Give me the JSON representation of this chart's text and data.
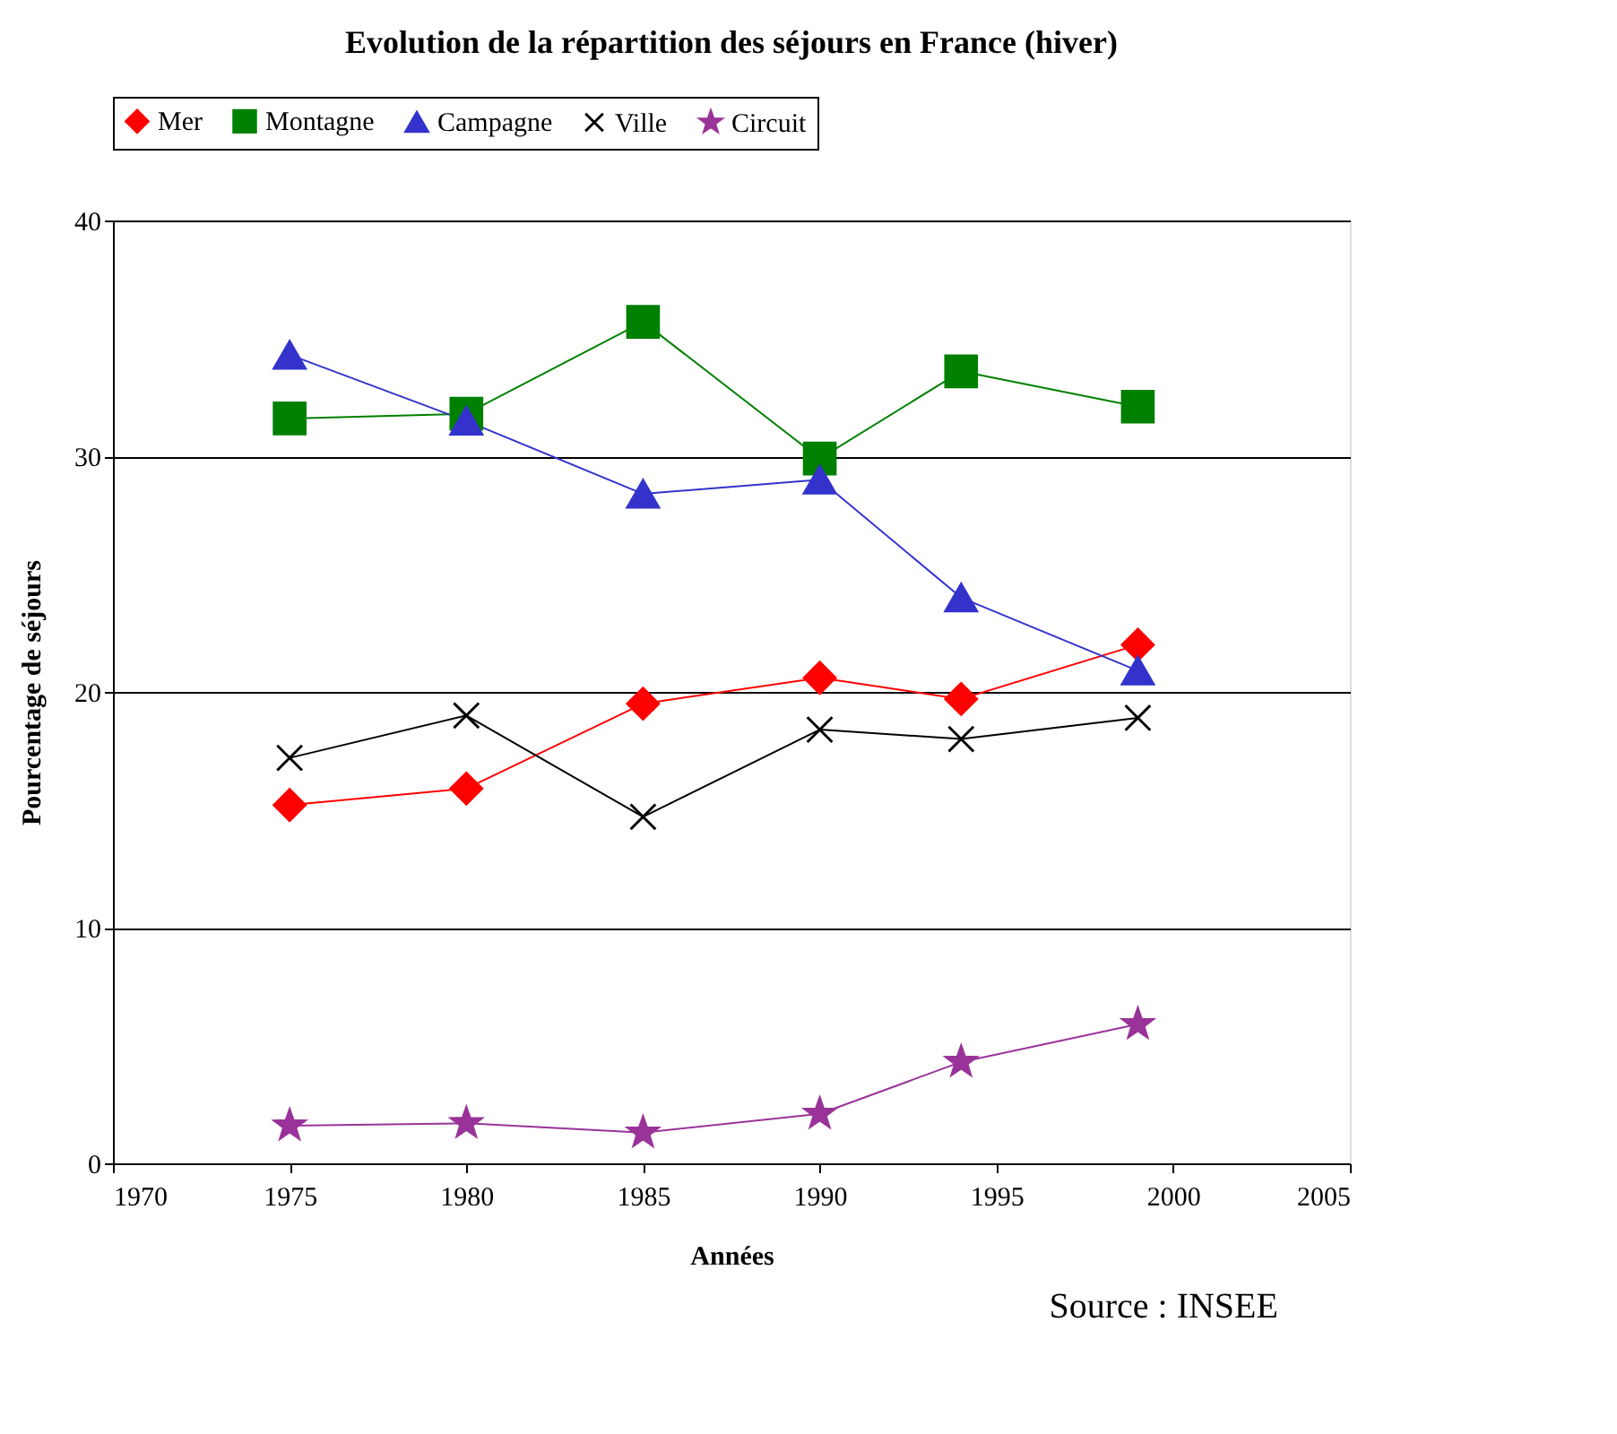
{
  "chart_data": {
    "type": "line",
    "title": "Evolution de la répartition des séjours en France  (hiver)",
    "xlabel": "Années",
    "ylabel": "Pourcentage de séjours",
    "x": [
      1975,
      1980,
      1985,
      1990,
      1994,
      1999
    ],
    "series": [
      {
        "name": "Mer",
        "color": "#ff0000",
        "marker": "diamond",
        "values": [
          15.2,
          15.9,
          19.5,
          20.6,
          19.7,
          22.0
        ]
      },
      {
        "name": "Montagne",
        "color": "#008000",
        "marker": "square",
        "values": [
          31.6,
          31.8,
          35.7,
          29.9,
          33.6,
          32.1
        ]
      },
      {
        "name": "Campagne",
        "color": "#3333cc",
        "marker": "triangle",
        "values": [
          34.3,
          31.5,
          28.4,
          29.0,
          24.0,
          20.9
        ]
      },
      {
        "name": "Ville",
        "color": "#000000",
        "marker": "cross",
        "values": [
          17.2,
          19.0,
          14.7,
          18.4,
          18.0,
          18.9
        ]
      },
      {
        "name": "Circuit",
        "color": "#993399",
        "marker": "star",
        "values": [
          1.6,
          1.7,
          1.3,
          2.1,
          4.3,
          5.9
        ]
      }
    ],
    "xlim": [
      1970,
      2005
    ],
    "xticks": [
      1970,
      1975,
      1980,
      1985,
      1990,
      1995,
      2000,
      2005
    ],
    "ylim": [
      0,
      40
    ],
    "yticks": [
      0,
      10,
      20,
      30,
      40
    ],
    "grid": "y",
    "legend": "top",
    "line_style": "solid",
    "annotations": [
      "Source : INSEE"
    ]
  }
}
